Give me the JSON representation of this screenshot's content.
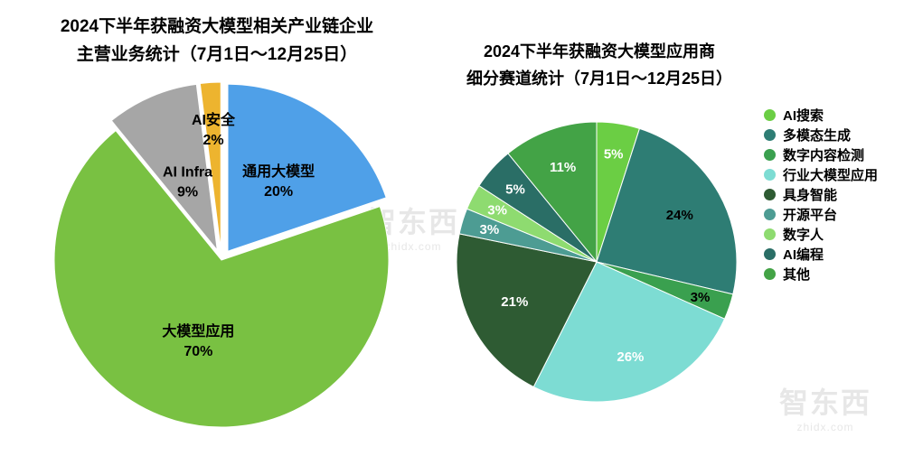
{
  "watermark": {
    "brand": "智东西",
    "domain": "zhidx.com"
  },
  "chart_data": [
    {
      "type": "pie",
      "title": "2024下半年获融资大模型相关产业链企业主营业务统计（7月1日～12月25日）",
      "title_lines": [
        "2024下半年获融资大模型相关产业链企业",
        "主营业务统计（7月1日～12月25日）"
      ],
      "start_angle_deg": 0,
      "direction": "clockwise",
      "legend_position": "none",
      "slices": [
        {
          "label": "通用大模型",
          "value": 20,
          "pct_text": "20%",
          "color": "#4FA0E8",
          "label_color": "#000000",
          "show_name": true,
          "explode": 12,
          "label_frac": 0.52
        },
        {
          "label": "大模型应用",
          "value": 70,
          "pct_text": "70%",
          "color": "#79C142",
          "label_color": "#000000",
          "show_name": true,
          "explode": 0,
          "label_frac": 0.5
        },
        {
          "label": "AI Infra",
          "value": 9,
          "pct_text": "9%",
          "color": "#A6A6A6",
          "label_color": "#000000",
          "show_name": true,
          "explode": 12,
          "label_frac": 0.45
        },
        {
          "label": "AI安全",
          "value": 2,
          "pct_text": "2%",
          "color": "#EDB42F",
          "label_color": "#000000",
          "show_name": true,
          "explode": 12,
          "label_frac": 0.72
        }
      ]
    },
    {
      "type": "pie",
      "title": "2024下半年获融资大模型应用商细分赛道统计（7月1日～12月25日）",
      "title_lines": [
        "2024下半年获融资大模型应用商",
        "细分赛道统计（7月1日～12月25日）"
      ],
      "start_angle_deg": 0,
      "direction": "clockwise",
      "legend_position": "right",
      "slices": [
        {
          "label": "AI搜索",
          "value": 5,
          "pct_text": "5%",
          "color": "#6BCE44",
          "label_color": "#ffffff",
          "show_name": false,
          "explode": 0,
          "label_frac": 0.78
        },
        {
          "label": "多模态生成",
          "value": 24,
          "pct_text": "24%",
          "color": "#2E7D74",
          "label_color": "#000000",
          "show_name": false,
          "explode": 0,
          "label_frac": 0.68
        },
        {
          "label": "数字内容检测",
          "value": 3,
          "pct_text": "3%",
          "color": "#3AA04F",
          "label_color": "#000000",
          "show_name": false,
          "explode": 0,
          "label_frac": 0.78
        },
        {
          "label": "行业大模型应用",
          "value": 26,
          "pct_text": "26%",
          "color": "#7DDCD3",
          "label_color": "#ffffff",
          "show_name": false,
          "explode": 0,
          "label_frac": 0.72
        },
        {
          "label": "具身智能",
          "value": 21,
          "pct_text": "21%",
          "color": "#2E5B33",
          "label_color": "#ffffff",
          "show_name": false,
          "explode": 0,
          "label_frac": 0.65
        },
        {
          "label": "开源平台",
          "value": 3,
          "pct_text": "3%",
          "color": "#4D9C93",
          "label_color": "#ffffff",
          "show_name": false,
          "explode": 0,
          "label_frac": 0.8
        },
        {
          "label": "数字人",
          "value": 3,
          "pct_text": "3%",
          "color": "#8EDB70",
          "label_color": "#ffffff",
          "show_name": false,
          "explode": 0,
          "label_frac": 0.8
        },
        {
          "label": "AI编程",
          "value": 5,
          "pct_text": "5%",
          "color": "#2A6E66",
          "label_color": "#ffffff",
          "show_name": false,
          "explode": 0,
          "label_frac": 0.78
        },
        {
          "label": "其他",
          "value": 11,
          "pct_text": "11%",
          "color": "#43A346",
          "label_color": "#ffffff",
          "show_name": false,
          "explode": 0,
          "label_frac": 0.72
        }
      ]
    }
  ]
}
